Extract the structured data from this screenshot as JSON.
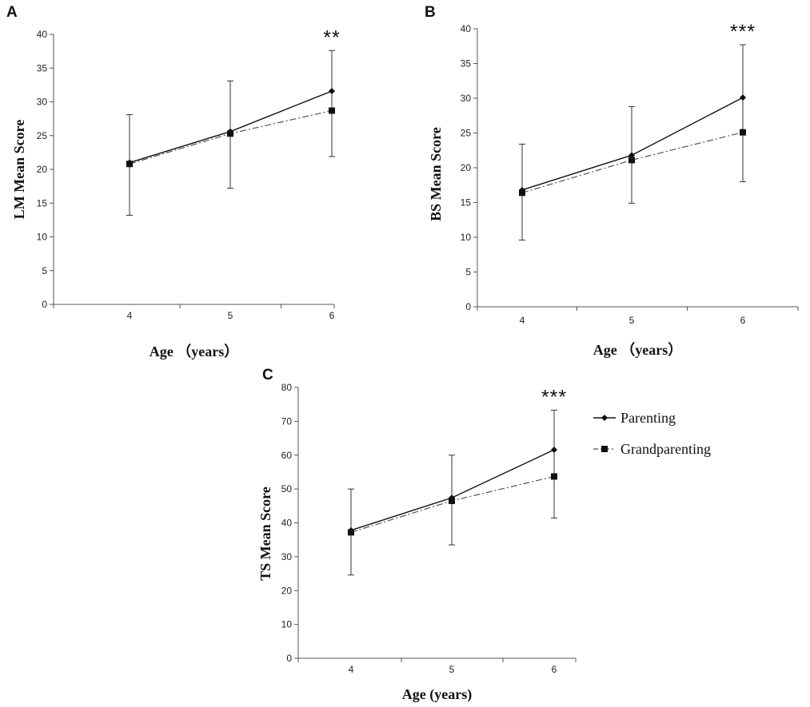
{
  "chart_data": [
    {
      "panel": "A",
      "type": "line",
      "ylabel": "LM Mean Score",
      "xlabel": "Age （years）",
      "categories": [
        "4",
        "5",
        "6"
      ],
      "ylim": [
        0,
        40
      ],
      "yticks": [
        "0",
        "5",
        "10",
        "15",
        "20",
        "25",
        "30",
        "35",
        "40"
      ],
      "series": [
        {
          "name": "Parenting",
          "marker": "diamond",
          "line": "solid",
          "values": [
            21,
            25.6,
            31.6
          ]
        },
        {
          "name": "Grandparenting",
          "marker": "square",
          "line": "dash-dot",
          "values": [
            20.8,
            25.3,
            28.7
          ]
        }
      ],
      "error_bars": [
        {
          "category": "4",
          "low": 13.2,
          "high": 28.1
        },
        {
          "category": "5",
          "low": 17.2,
          "high": 33.1
        },
        {
          "category": "6",
          "low": 21.9,
          "high": 37.6
        }
      ],
      "significance": {
        "category": "6",
        "label": "**"
      }
    },
    {
      "panel": "B",
      "type": "line",
      "ylabel": "BS Mean Score",
      "xlabel": "Age （years）",
      "categories": [
        "4",
        "5",
        "6"
      ],
      "ylim": [
        0,
        40
      ],
      "yticks": [
        "0",
        "5",
        "10",
        "15",
        "20",
        "25",
        "30",
        "35",
        "40"
      ],
      "series": [
        {
          "name": "Parenting",
          "marker": "diamond",
          "line": "solid",
          "values": [
            16.8,
            21.8,
            30.1
          ]
        },
        {
          "name": "Grandparenting",
          "marker": "square",
          "line": "dash-dot",
          "values": [
            16.4,
            21.1,
            25.1
          ]
        }
      ],
      "error_bars": [
        {
          "category": "4",
          "low": 9.6,
          "high": 23.4
        },
        {
          "category": "5",
          "low": 14.9,
          "high": 28.8
        },
        {
          "category": "6",
          "low": 18,
          "high": 37.7
        }
      ],
      "significance": {
        "category": "6",
        "label": "***"
      }
    },
    {
      "panel": "C",
      "type": "line",
      "ylabel": "TS Mean Score",
      "xlabel": "Age (years)",
      "categories": [
        "4",
        "5",
        "6"
      ],
      "ylim": [
        0,
        80
      ],
      "yticks": [
        "0",
        "10",
        "20",
        "30",
        "40",
        "50",
        "60",
        "70",
        "80"
      ],
      "series": [
        {
          "name": "Parenting",
          "marker": "diamond",
          "line": "solid",
          "values": [
            37.8,
            47.4,
            61.6
          ]
        },
        {
          "name": "Grandparenting",
          "marker": "square",
          "line": "dash-dot",
          "values": [
            37.2,
            46.5,
            53.7
          ]
        }
      ],
      "error_bars": [
        {
          "category": "4",
          "low": 24.6,
          "high": 50
        },
        {
          "category": "5",
          "low": 33.5,
          "high": 60
        },
        {
          "category": "6",
          "low": 41.4,
          "high": 73.3
        }
      ],
      "significance": {
        "category": "6",
        "label": "***"
      }
    }
  ],
  "legend": {
    "entries": [
      "Parenting",
      "Grandparenting"
    ],
    "placement": "right of panel C"
  }
}
